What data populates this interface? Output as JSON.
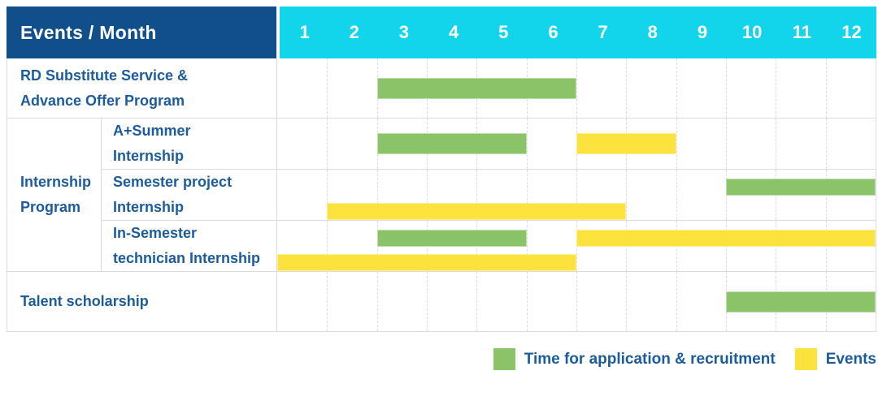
{
  "colors": {
    "header_bg": "#104F89",
    "months_bg": "#12D5EB",
    "label_text": "#1C5C9C",
    "application": "#8BC368",
    "event": "#FBE23D"
  },
  "header": {
    "title": "Events / Month",
    "months": [
      "1",
      "2",
      "3",
      "4",
      "5",
      "6",
      "7",
      "8",
      "9",
      "10",
      "11",
      "12"
    ]
  },
  "rows": [
    {
      "id": "rd-substitute",
      "label": "RD Substitute Service &\nAdvance Offer Program",
      "bars": [
        {
          "kind": "application",
          "start": 3,
          "end": 6,
          "line": "center"
        }
      ]
    },
    {
      "id": "internship-program",
      "group_label": "Internship\nProgram",
      "subrows": [
        {
          "id": "a-plus-summer-internship",
          "label": "A+Summer\nInternship",
          "bars": [
            {
              "kind": "application",
              "start": 3,
              "end": 5,
              "line": "center"
            },
            {
              "kind": "event",
              "start": 7,
              "end": 8,
              "line": "center"
            }
          ]
        },
        {
          "id": "semester-project-internship",
          "label": "Semester project\nInternship",
          "bars": [
            {
              "kind": "application",
              "start": 10,
              "end": 12,
              "line": "top"
            },
            {
              "kind": "event",
              "start": 2,
              "end": 7,
              "line": "bottom"
            }
          ]
        },
        {
          "id": "in-semester-technician-internship",
          "label": "In-Semester\ntechnician Internship",
          "bars": [
            {
              "kind": "application",
              "start": 3,
              "end": 5,
              "line": "top"
            },
            {
              "kind": "event",
              "start": 7,
              "end": 12,
              "line": "top"
            },
            {
              "kind": "event",
              "start": 1,
              "end": 6,
              "line": "bottom"
            }
          ]
        }
      ]
    },
    {
      "id": "talent-scholarship",
      "label": "Talent scholarship",
      "bars": [
        {
          "kind": "application",
          "start": 10,
          "end": 12,
          "line": "center"
        }
      ]
    }
  ],
  "legend": [
    {
      "kind": "application",
      "label": "Time for application & recruitment"
    },
    {
      "kind": "event",
      "label": "Events"
    }
  ],
  "chart_data": {
    "type": "table",
    "title": "Events / Month",
    "x_axis": {
      "label": "Month",
      "ticks": [
        1,
        2,
        3,
        4,
        5,
        6,
        7,
        8,
        9,
        10,
        11,
        12
      ]
    },
    "legend": {
      "green": "Time for application & recruitment",
      "yellow": "Events"
    },
    "rows": [
      {
        "event": "RD Substitute Service & Advance Offer Program",
        "application_month_ranges": [
          [
            3,
            6
          ]
        ],
        "event_month_ranges": []
      },
      {
        "event": "Internship Program - A+Summer Internship",
        "application_month_ranges": [
          [
            3,
            5
          ]
        ],
        "event_month_ranges": [
          [
            7,
            8
          ]
        ]
      },
      {
        "event": "Internship Program - Semester project Internship",
        "application_month_ranges": [
          [
            10,
            12
          ]
        ],
        "event_month_ranges": [
          [
            2,
            7
          ]
        ]
      },
      {
        "event": "Internship Program - In-Semester technician Internship",
        "application_month_ranges": [
          [
            3,
            5
          ]
        ],
        "event_month_ranges": [
          [
            1,
            6
          ],
          [
            7,
            12
          ]
        ]
      },
      {
        "event": "Talent scholarship",
        "application_month_ranges": [
          [
            10,
            12
          ]
        ],
        "event_month_ranges": []
      }
    ]
  }
}
